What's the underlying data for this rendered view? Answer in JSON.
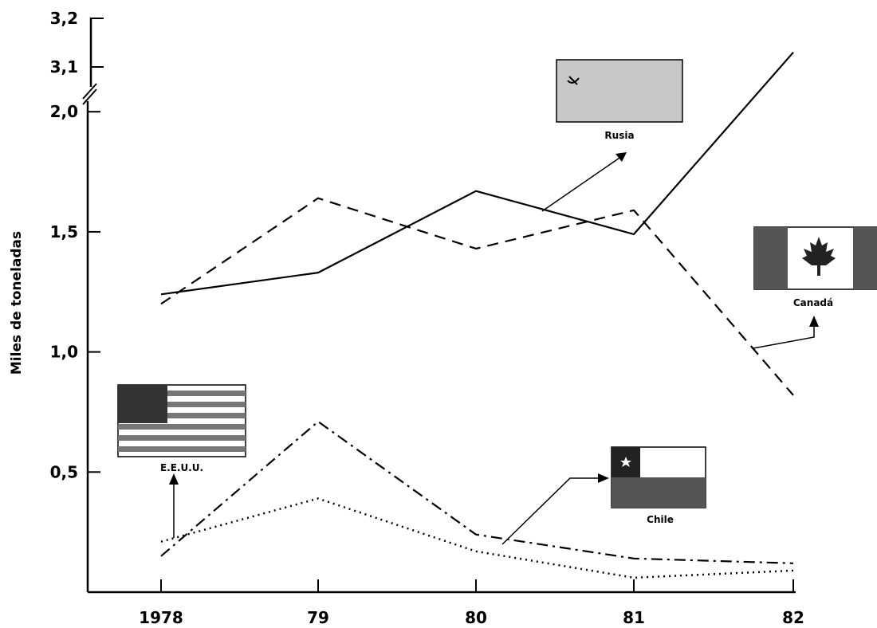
{
  "chart_data": {
    "type": "line",
    "title": "",
    "xlabel": "",
    "ylabel": "Miles de toneladas",
    "categories": [
      "1978",
      "79",
      "80",
      "81",
      "82"
    ],
    "y_ticks": [
      "0,5",
      "1,0",
      "1,5",
      "2,0",
      "3,1",
      "3,2"
    ],
    "y_axis_break": {
      "lower_max": 2.0,
      "upper_min": 3.1,
      "upper_max": 3.2
    },
    "series": [
      {
        "name": "Rusia",
        "style": "solid",
        "values": [
          1.24,
          1.33,
          1.67,
          1.49,
          3.13
        ]
      },
      {
        "name": "Canadá",
        "style": "dashed",
        "values": [
          1.2,
          1.64,
          1.43,
          1.59,
          0.82
        ]
      },
      {
        "name": "E.E.U.U.",
        "style": "dotted",
        "values": [
          0.21,
          0.39,
          0.17,
          0.06,
          0.09
        ]
      },
      {
        "name": "Chile",
        "style": "dash-dot",
        "values": [
          0.15,
          0.71,
          0.24,
          0.14,
          0.12
        ]
      }
    ],
    "grid": false,
    "colors": {
      "line": "#000000",
      "flag_shade": "#c8c8c8",
      "flag_dark": "#444444"
    }
  }
}
